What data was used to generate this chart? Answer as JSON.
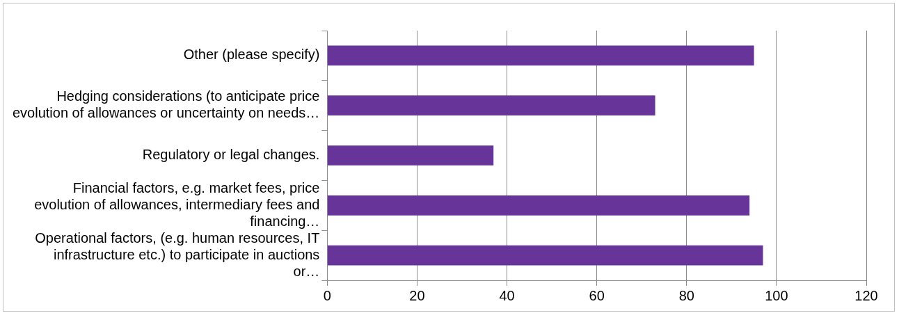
{
  "chart_data": {
    "type": "bar",
    "orientation": "horizontal",
    "categories": [
      "Other (please specify)",
      "Hedging considerations (to anticipate price evolution of allowances or uncertainty on needs…",
      "Regulatory or legal changes.",
      "Financial factors, e.g. market fees, price evolution of allowances, intermediary fees and financing…",
      "Operational factors, (e.g. human resources, IT infrastructure etc.) to participate in auctions or…"
    ],
    "values": [
      95,
      73,
      37,
      94,
      97
    ],
    "color": "#67359a",
    "xlim": [
      0,
      120
    ],
    "xticks": [
      0,
      20,
      40,
      60,
      80,
      100,
      120
    ],
    "grid": "x",
    "legend": false
  }
}
